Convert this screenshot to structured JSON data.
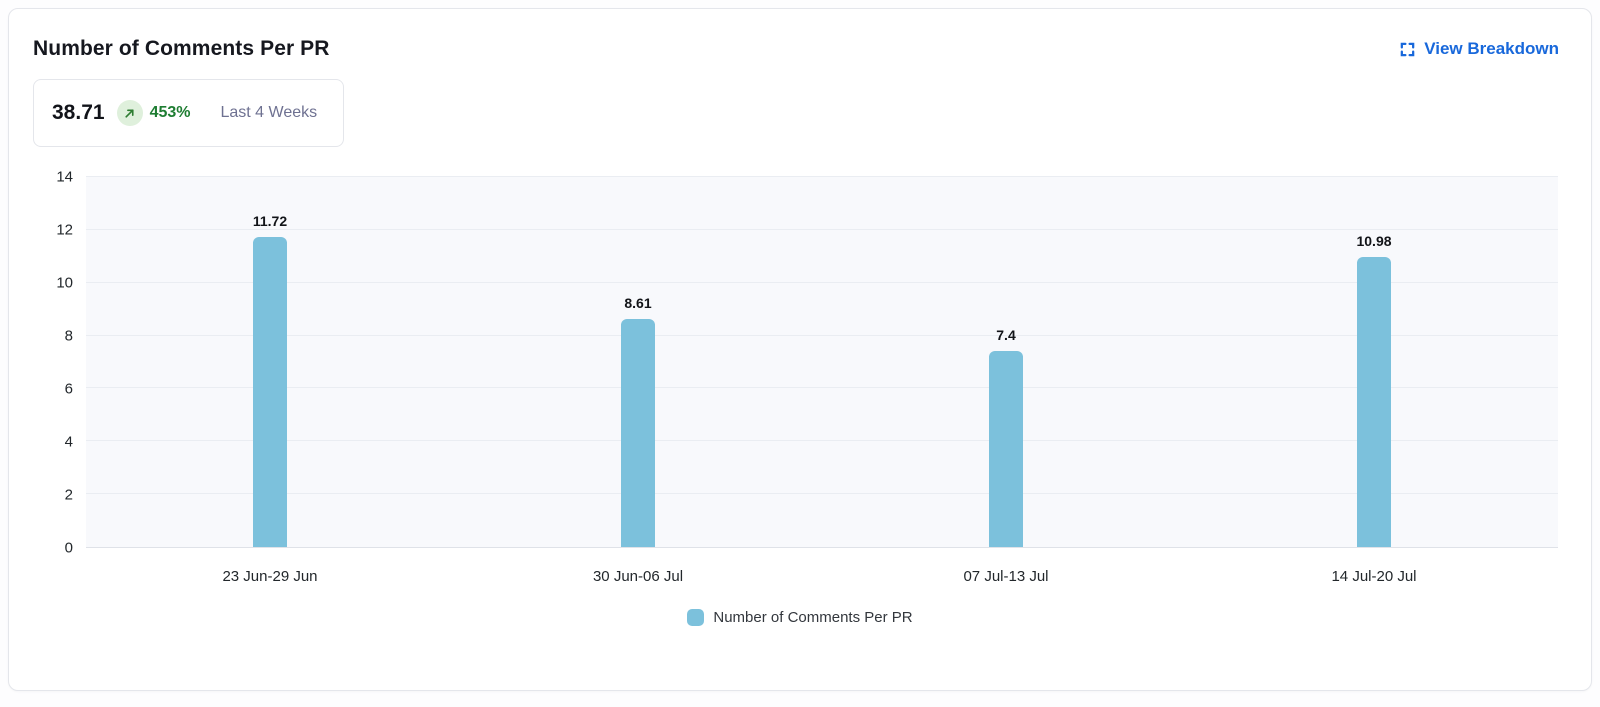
{
  "card": {
    "title": "Number of Comments Per PR",
    "view_breakdown_label": "View Breakdown",
    "stat": {
      "value": "38.71",
      "change": "453%",
      "trend_icon": "arrow-up-right",
      "period": "Last 4 Weeks"
    }
  },
  "chart_data": {
    "type": "bar",
    "title": "Number of Comments Per PR",
    "categories": [
      "23 Jun-29 Jun",
      "30 Jun-06 Jul",
      "07 Jul-13 Jul",
      "14 Jul-20 Jul"
    ],
    "values": [
      11.72,
      8.61,
      7.4,
      10.98
    ],
    "value_labels": [
      "11.72",
      "8.61",
      "7.4",
      "10.98"
    ],
    "xlabel": "",
    "ylabel": "",
    "ylim": [
      0,
      14
    ],
    "yticks": [
      0,
      2,
      4,
      6,
      8,
      10,
      12,
      14
    ],
    "grid": true,
    "legend": [
      "Number of Comments Per PR"
    ],
    "legend_position": "bottom"
  },
  "colors": {
    "accent_blue": "#1868DB",
    "bar": "#7CC1DC",
    "positive_green": "#1E7D32",
    "badge_bg": "#DFF0DC",
    "plot_bg": "#F8F9FC",
    "grid_line": "#EAEDF2",
    "border": "#E4E6EB",
    "muted_text": "#6E7191"
  }
}
